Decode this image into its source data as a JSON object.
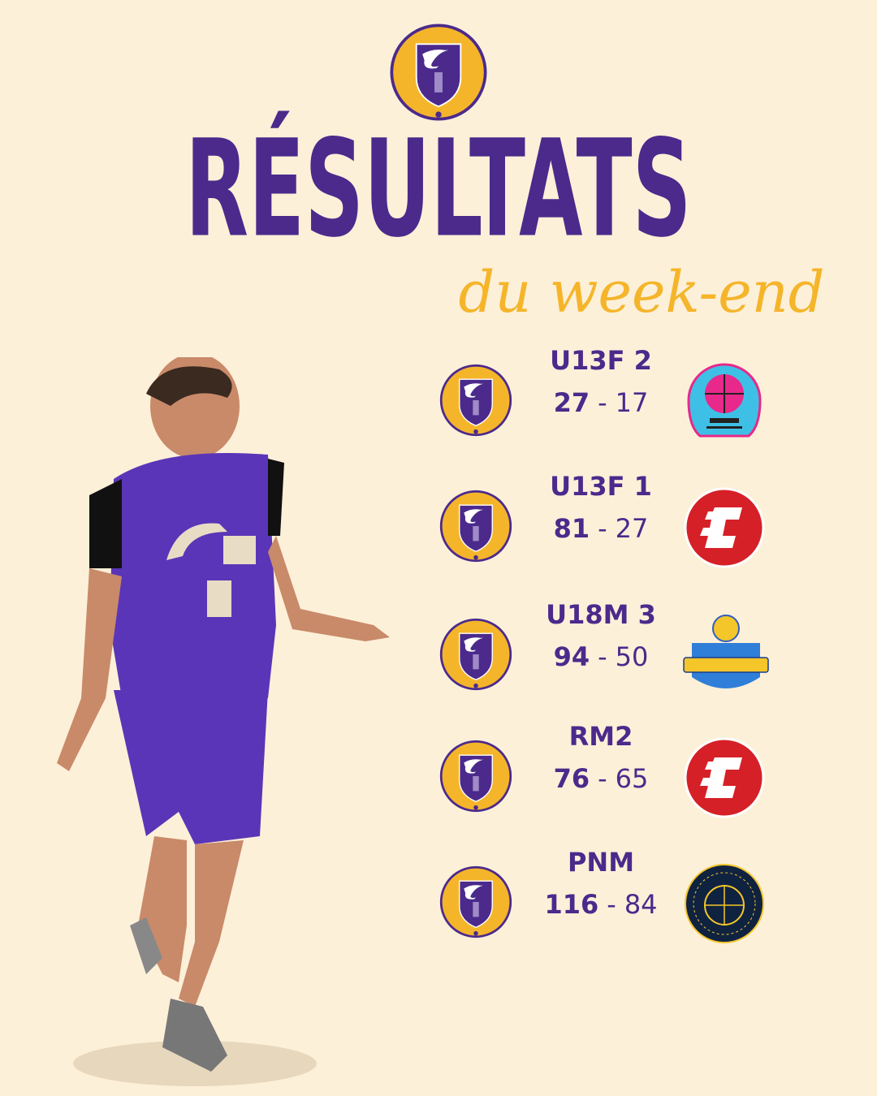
{
  "header": {
    "club_logo": "CAB - Croix d'Argent Basket Montpellier 1992",
    "title": "RÉSULTATS",
    "subtitle": "du week-end"
  },
  "colors": {
    "background": "#fdf0d9",
    "purple": "#4b2a8c",
    "gold": "#f5b52a"
  },
  "results": [
    {
      "category": "U13F 2",
      "home_score": "27",
      "separator": "-",
      "away_score": "17",
      "opponent_logo": "OMM Basketball"
    },
    {
      "category": "U13F 1",
      "home_score": "81",
      "separator": "-",
      "away_score": "27",
      "opponent_logo": "red-c-logo"
    },
    {
      "category": "U18M 3",
      "home_score": "94",
      "separator": "-",
      "away_score": "50",
      "opponent_logo": "SO Coursan"
    },
    {
      "category": "RM2",
      "home_score": "76",
      "separator": "-",
      "away_score": "65",
      "opponent_logo": "red-c-logo"
    },
    {
      "category": "PNM",
      "home_score": "116",
      "separator": "-",
      "away_score": "84",
      "opponent_logo": "Basket Pays Lunel"
    }
  ]
}
